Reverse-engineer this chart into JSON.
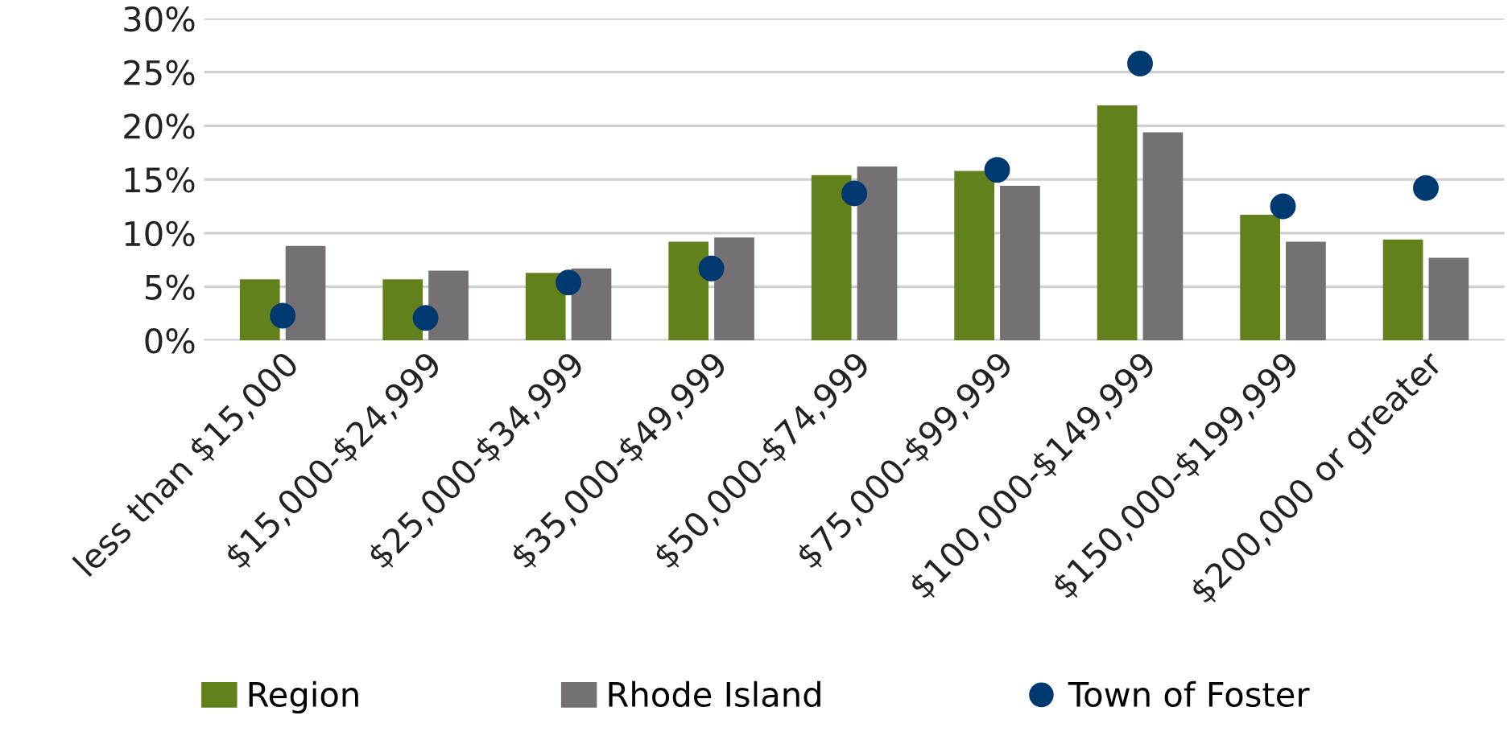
{
  "chart_data": {
    "type": "bar",
    "categories": [
      "less than $15,000",
      "$15,000-$24,999",
      "$25,000-$34,999",
      "$35,000-$49,999",
      "$50,000-$74,999",
      "$75,000-$99,999",
      "$100,000-$149,999",
      "$150,000-$199,999",
      "$200,000 or greater"
    ],
    "series": [
      {
        "name": "Region",
        "color": "#62801b",
        "values": [
          5.7,
          5.7,
          6.3,
          9.2,
          15.4,
          15.8,
          21.9,
          11.7,
          9.4
        ]
      },
      {
        "name": "Rhode Island",
        "color": "#747073",
        "values": [
          8.8,
          6.5,
          6.7,
          9.6,
          16.2,
          14.4,
          19.4,
          9.2,
          7.7
        ]
      },
      {
        "name": "Town of Foster",
        "color": "#003a70",
        "type": "scatter",
        "marker": "circle",
        "x": [
          "less than $15,000",
          "$15,000-$24,999",
          "$25,000-$34,999",
          "$35,000-$49,999",
          "$50,000-$74,999",
          "$75,000-$99,999",
          "$100,000-$149,999",
          "$150,000-$199,999",
          "$200,000 or greater"
        ],
        "values": [
          2.3,
          2.1,
          5.4,
          6.7,
          13.7,
          15.9,
          25.8,
          12.5,
          14.2
        ]
      }
    ],
    "ylim": [
      0,
      30
    ],
    "yticks": [
      {
        "value": 0,
        "label": "0%"
      },
      {
        "value": 5,
        "label": "5%"
      },
      {
        "value": 10,
        "label": "10%"
      },
      {
        "value": 15,
        "label": "15%"
      },
      {
        "value": 20,
        "label": "20%"
      },
      {
        "value": 25,
        "label": "25%"
      },
      {
        "value": 30,
        "label": "30%"
      }
    ],
    "grid": "y",
    "legend": "bottom"
  }
}
